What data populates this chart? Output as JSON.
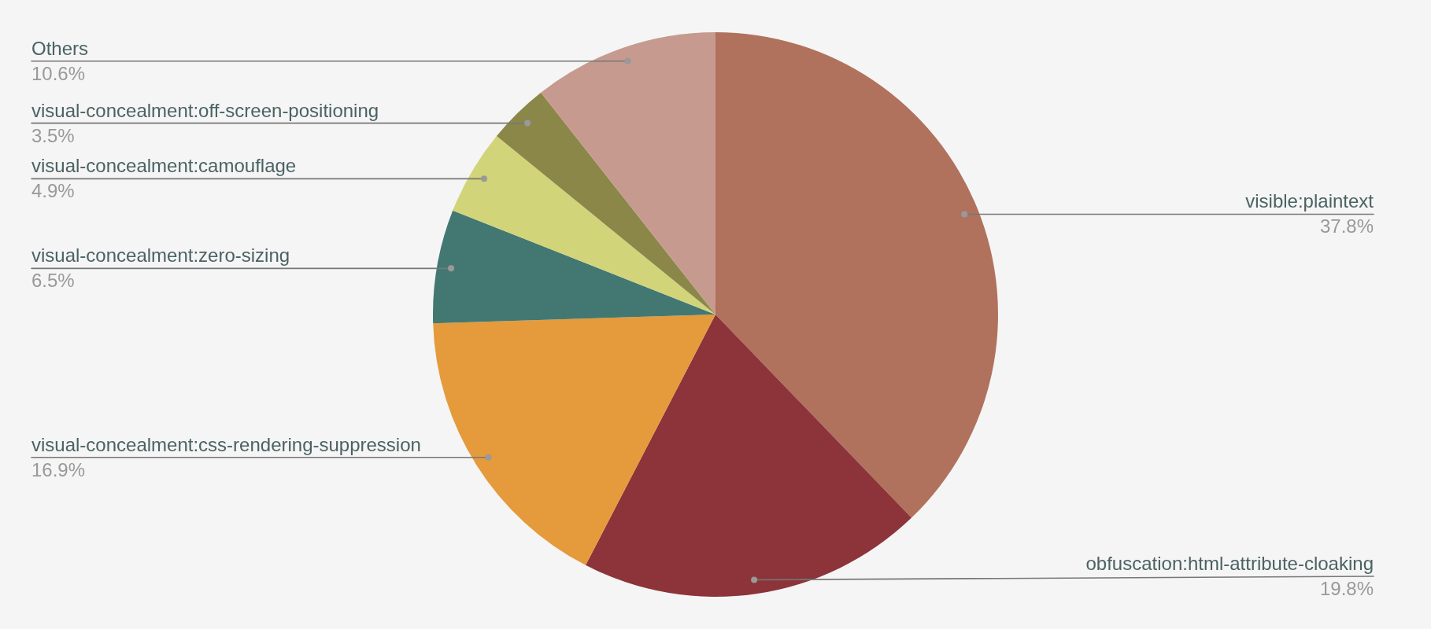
{
  "chart_data": {
    "type": "pie",
    "categories": [
      "visible:plaintext",
      "obfuscation:html-attribute-cloaking",
      "visual-concealment:css-rendering-suppression",
      "visual-concealment:zero-sizing",
      "visual-concealment:camouflage",
      "visual-concealment:off-screen-positioning",
      "Others"
    ],
    "values": [
      37.8,
      19.8,
      16.9,
      6.5,
      4.9,
      3.5,
      10.6
    ],
    "colors": [
      "#b0725d",
      "#8c3439",
      "#e59a3b",
      "#437872",
      "#d2d47a",
      "#8a8748",
      "#c79a8f"
    ],
    "value_labels": [
      "37.8%",
      "19.8%",
      "16.9%",
      "6.5%",
      "4.9%",
      "3.5%",
      "10.6%"
    ]
  }
}
